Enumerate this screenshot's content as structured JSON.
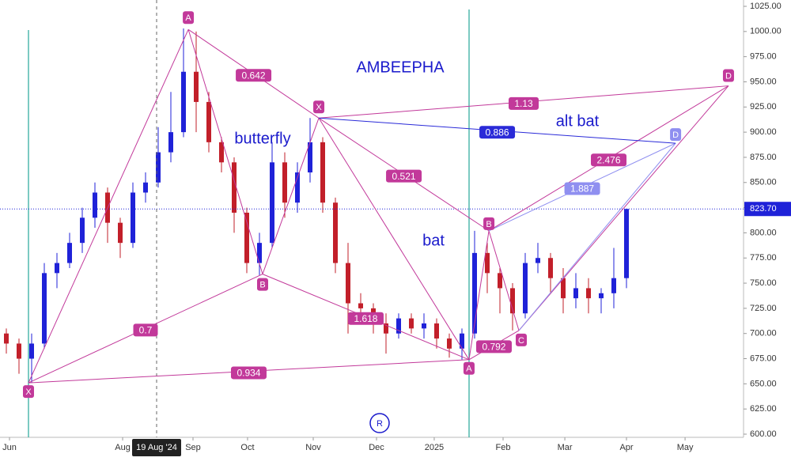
{
  "chart_data": {
    "type": "candlestick",
    "title": "AMBEEPHA",
    "up_color": "#1f22d8",
    "down_color": "#c21f2a",
    "x": [
      0,
      1,
      2,
      3,
      4,
      5,
      6,
      7,
      8,
      9,
      10,
      11,
      12,
      13,
      14,
      15,
      16,
      17,
      18,
      19,
      20,
      21,
      22,
      23,
      24,
      25,
      26,
      27,
      28,
      29,
      30,
      31,
      32,
      33,
      34,
      35,
      36,
      37,
      38,
      39,
      40,
      41,
      42,
      43,
      44,
      45,
      46,
      47,
      48,
      49
    ],
    "open": [
      700,
      690,
      675,
      690,
      760,
      770,
      790,
      815,
      840,
      810,
      790,
      840,
      850,
      880,
      900,
      960,
      930,
      890,
      870,
      820,
      770,
      790,
      870,
      830,
      860,
      890,
      830,
      770,
      730,
      725,
      710,
      700,
      715,
      705,
      710,
      695,
      685,
      700,
      780,
      760,
      745,
      720,
      770,
      775,
      755,
      735,
      745,
      735,
      740,
      755
    ],
    "high": [
      705,
      695,
      700,
      770,
      780,
      800,
      825,
      850,
      845,
      815,
      850,
      860,
      905,
      940,
      1003,
      1000,
      940,
      895,
      875,
      825,
      800,
      890,
      880,
      870,
      914,
      895,
      835,
      790,
      740,
      730,
      720,
      720,
      720,
      720,
      715,
      700,
      705,
      802,
      790,
      765,
      750,
      780,
      790,
      780,
      765,
      760,
      755,
      745,
      785,
      824
    ],
    "low": [
      680,
      660,
      651,
      685,
      745,
      765,
      780,
      805,
      790,
      775,
      785,
      830,
      845,
      870,
      895,
      900,
      880,
      860,
      800,
      760,
      758,
      785,
      815,
      820,
      850,
      820,
      760,
      700,
      710,
      700,
      680,
      695,
      700,
      695,
      685,
      676,
      674,
      695,
      740,
      720,
      703,
      715,
      760,
      740,
      720,
      725,
      720,
      720,
      725,
      745
    ],
    "close": [
      690,
      675,
      690,
      760,
      770,
      790,
      815,
      840,
      810,
      790,
      840,
      850,
      880,
      900,
      960,
      930,
      890,
      870,
      820,
      770,
      790,
      870,
      830,
      860,
      890,
      830,
      770,
      730,
      725,
      710,
      700,
      715,
      705,
      710,
      695,
      685,
      700,
      780,
      760,
      745,
      720,
      770,
      775,
      755,
      735,
      745,
      735,
      740,
      755,
      823.7
    ],
    "xlim": [
      -0.5,
      58.25
    ],
    "ylim": [
      600,
      1025
    ],
    "xticks": [
      {
        "value": 0.25,
        "label": "Jun"
      },
      {
        "value": 9.19,
        "label": "Aug"
      },
      {
        "value": 14.75,
        "label": "Sep"
      },
      {
        "value": 19.06,
        "label": "Oct"
      },
      {
        "value": 24.25,
        "label": "Nov"
      },
      {
        "value": 29.25,
        "label": "Dec"
      },
      {
        "value": 33.81,
        "label": "2025"
      },
      {
        "value": 39.25,
        "label": "Feb"
      },
      {
        "value": 44.13,
        "label": "Mar"
      },
      {
        "value": 49,
        "label": "Apr"
      },
      {
        "value": 53.63,
        "label": "May"
      }
    ],
    "yticks": [
      {
        "value": 600,
        "label": "600.00"
      },
      {
        "value": 625,
        "label": "625.00"
      },
      {
        "value": 650,
        "label": "650.00"
      },
      {
        "value": 675,
        "label": "675.00"
      },
      {
        "value": 700,
        "label": "700.00"
      },
      {
        "value": 725,
        "label": "725.00"
      },
      {
        "value": 750,
        "label": "750.00"
      },
      {
        "value": 775,
        "label": "775.00"
      },
      {
        "value": 800,
        "label": "800.00"
      },
      {
        "value": 825,
        "label": "825.00"
      },
      {
        "value": 850,
        "label": "850.00"
      },
      {
        "value": 875,
        "label": "875.00"
      },
      {
        "value": 900,
        "label": "900.00"
      },
      {
        "value": 925,
        "label": "925.00"
      },
      {
        "value": 950,
        "label": "950.00"
      },
      {
        "value": 975,
        "label": "975.00"
      },
      {
        "value": 1000,
        "label": "1000.00"
      },
      {
        "value": 1025,
        "label": "1025.00"
      }
    ],
    "last_price": {
      "value": 823.7,
      "label": "823.70"
    },
    "crosshair": {
      "value": 11.875,
      "label": "19 Aug '24"
    },
    "pattern_points": [
      {
        "label": "X",
        "x": 1.75,
        "y": 651
      },
      {
        "label": "A",
        "x": 14.38,
        "y": 1002
      },
      {
        "label": "B",
        "x": 20.25,
        "y": 759
      },
      {
        "label": "X",
        "x": 24.69,
        "y": 914
      },
      {
        "label": "A",
        "x": 36.56,
        "y": 674
      },
      {
        "label": "B",
        "x": 38.13,
        "y": 802
      },
      {
        "label": "C",
        "x": 40.5,
        "y": 703
      },
      {
        "label": "D",
        "x": 52.88,
        "y": 889
      },
      {
        "label": "D",
        "x": 57.06,
        "y": 946
      }
    ],
    "ratio_labels": [
      0.642,
      0.7,
      0.934,
      1.618,
      0.521,
      0.792,
      1.13,
      2.476,
      0.886,
      1.887
    ],
    "annotations": [
      "butterfly",
      "bat",
      "alt bat"
    ],
    "watermark_badge": "R"
  }
}
